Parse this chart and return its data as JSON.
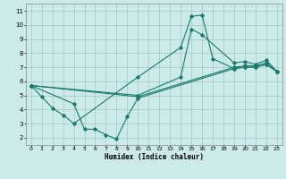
{
  "xlabel": "Humidex (Indice chaleur)",
  "bg_color": "#cceae8",
  "grid_color": "#aacccc",
  "line_color": "#1a7a6e",
  "xlim": [
    -0.5,
    23.5
  ],
  "ylim": [
    1.5,
    11.5
  ],
  "xticks": [
    0,
    1,
    2,
    3,
    4,
    5,
    6,
    7,
    8,
    9,
    10,
    11,
    12,
    13,
    14,
    15,
    16,
    17,
    18,
    19,
    20,
    21,
    22,
    23
  ],
  "yticks": [
    2,
    3,
    4,
    5,
    6,
    7,
    8,
    9,
    10,
    11
  ],
  "lines": [
    {
      "x": [
        0,
        1,
        2,
        3,
        4,
        10,
        14,
        15,
        16,
        17,
        19,
        20,
        21,
        22,
        23
      ],
      "y": [
        5.7,
        4.9,
        4.1,
        3.6,
        3.0,
        6.3,
        8.4,
        10.6,
        10.7,
        7.6,
        6.9,
        7.0,
        7.0,
        7.2,
        6.7
      ]
    },
    {
      "x": [
        0,
        4,
        5,
        6,
        7,
        8,
        9,
        10,
        19,
        20,
        21,
        22,
        23
      ],
      "y": [
        5.7,
        4.4,
        2.6,
        2.6,
        2.2,
        1.9,
        3.5,
        4.8,
        6.9,
        7.0,
        7.0,
        7.2,
        6.7
      ]
    },
    {
      "x": [
        0,
        10,
        14,
        15,
        16,
        19,
        20,
        21,
        22,
        23
      ],
      "y": [
        5.7,
        5.0,
        6.3,
        9.7,
        9.3,
        7.3,
        7.4,
        7.2,
        7.5,
        6.7
      ]
    },
    {
      "x": [
        0,
        10,
        19,
        20,
        21,
        22,
        23
      ],
      "y": [
        5.7,
        4.9,
        7.0,
        7.1,
        7.1,
        7.3,
        6.7
      ]
    }
  ]
}
